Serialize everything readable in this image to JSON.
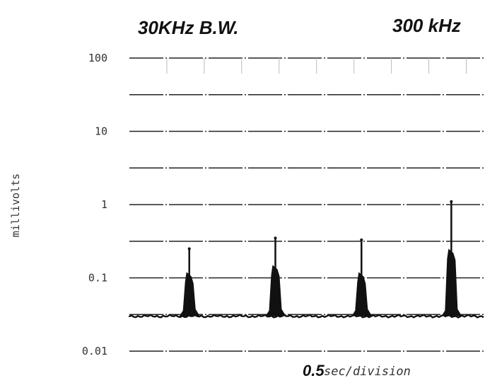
{
  "chart_data": {
    "type": "line",
    "title_left": "30KHz B.W.",
    "title_right": "300 kHz",
    "ylabel": "millivolts",
    "xlabel_value": "0.5",
    "xlabel_unit": "sec/division",
    "yscale": "log",
    "ylim": [
      0.01,
      100
    ],
    "yticks": [
      {
        "value": 100,
        "label": "100"
      },
      {
        "value": 10,
        "label": "10"
      },
      {
        "value": 1,
        "label": "1"
      },
      {
        "value": 0.1,
        "label": "0.1"
      },
      {
        "value": 0.01,
        "label": "0.01"
      }
    ],
    "grid": true,
    "noise_floor": 0.03,
    "series": [
      {
        "pulses": [
          {
            "x": 1.6,
            "peak": 0.25,
            "body": 0.12
          },
          {
            "x": 3.9,
            "peak": 0.35,
            "body": 0.15
          },
          {
            "x": 6.2,
            "peak": 0.33,
            "body": 0.12
          },
          {
            "x": 8.6,
            "peak": 1.1,
            "body": 0.25
          }
        ]
      }
    ]
  }
}
